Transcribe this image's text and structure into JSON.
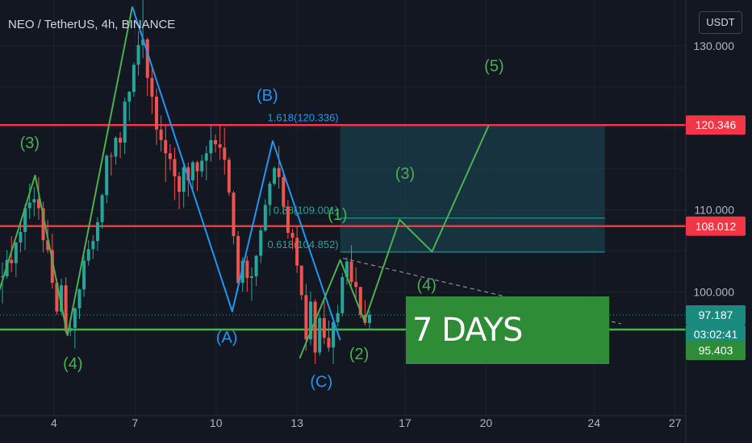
{
  "header": {
    "symbol": "NEO / TetherUS, 4h, BINANCE",
    "currency": "USDT"
  },
  "banner": {
    "text": "7 DAYS"
  },
  "colors": {
    "background": "#131722",
    "up": "#26a69a",
    "down": "#ef5350",
    "level_line": "#f23645",
    "support_line": "#4caf50",
    "green_wave": "#4caf50",
    "blue_wave": "#2196f3",
    "axis_text": "#b2b5be"
  },
  "chart_data": {
    "type": "candlestick",
    "x_axis": {
      "tick_labels": [
        "4",
        "7",
        "10",
        "13",
        "17",
        "20",
        "24",
        "27"
      ],
      "range_days": [
        2.0,
        27.4
      ]
    },
    "y_axis": {
      "tick_labels": [
        "100.000",
        "110.000",
        "130.000"
      ],
      "ticks": [
        100,
        110,
        130
      ],
      "range": [
        84.9,
        135.6
      ]
    },
    "price_labels": [
      {
        "value": "120.346",
        "color": "#f23645"
      },
      {
        "value": "108.012",
        "color": "#f23645"
      },
      {
        "value": "97.187",
        "color": "#1b8a7e"
      },
      {
        "value": "03:02:41",
        "color": "#1b8a7e"
      },
      {
        "value": "95.403",
        "color": "#2e8b36"
      }
    ],
    "horizontal_levels": [
      {
        "price": 120.346,
        "role": "resistance"
      },
      {
        "price": 108.012,
        "role": "resistance"
      },
      {
        "price": 95.403,
        "role": "support"
      }
    ],
    "current_price": 97.187,
    "fib_levels": [
      {
        "label": "1.618(120.336)",
        "price": 120.336
      },
      {
        "label": "0.88(109.001)",
        "price": 109.001
      },
      {
        "label": "0.618(104.852)",
        "price": 104.852
      }
    ],
    "target_box": {
      "x1": 14.6,
      "x2": 24.4,
      "p_top": 120.346,
      "p_bottom": 104.852
    },
    "candles_ohlc": [
      [
        101.8,
        103.6,
        98.6,
        101.9
      ],
      [
        101.9,
        105.1,
        101.6,
        103.9
      ],
      [
        103.9,
        106.8,
        102.4,
        103.5
      ],
      [
        103.5,
        106.1,
        101.8,
        106.0
      ],
      [
        106.0,
        108.5,
        104.8,
        107.3
      ],
      [
        107.3,
        110.7,
        105.1,
        110.2
      ],
      [
        110.2,
        113.2,
        108.9,
        110.9
      ],
      [
        110.9,
        112.8,
        109.2,
        111.3
      ],
      [
        111.3,
        114.0,
        108.8,
        110.2
      ],
      [
        110.2,
        111.0,
        104.8,
        106.3
      ],
      [
        106.3,
        108.8,
        104.7,
        105.1
      ],
      [
        105.1,
        107.1,
        100.4,
        101.1
      ],
      [
        101.1,
        101.6,
        97.2,
        97.6
      ],
      [
        97.6,
        101.6,
        97.2,
        100.8
      ],
      [
        100.8,
        101.8,
        94.9,
        95.2
      ],
      [
        95.2,
        96.9,
        94.6,
        95.6
      ],
      [
        95.6,
        98.1,
        93.1,
        98.0
      ],
      [
        98.0,
        100.4,
        96.7,
        100.3
      ],
      [
        100.3,
        104.4,
        99.4,
        103.8
      ],
      [
        103.8,
        106.3,
        103.2,
        105.2
      ],
      [
        105.2,
        106.9,
        104.0,
        106.2
      ],
      [
        106.2,
        109.1,
        105.0,
        108.5
      ],
      [
        108.5,
        112.0,
        107.7,
        111.8
      ],
      [
        111.8,
        116.8,
        110.8,
        116.6
      ],
      [
        116.6,
        117.0,
        114.2,
        116.5
      ],
      [
        116.5,
        119.0,
        115.5,
        118.8
      ],
      [
        118.8,
        119.5,
        116.3,
        118.2
      ],
      [
        118.2,
        123.7,
        116.8,
        123.2
      ],
      [
        123.2,
        124.5,
        120.8,
        124.4
      ],
      [
        124.4,
        128.0,
        123.8,
        127.7
      ],
      [
        127.7,
        131.8,
        126.4,
        130.1
      ],
      [
        130.1,
        136.0,
        128.5,
        130.8
      ],
      [
        130.8,
        131.0,
        123.9,
        126.1
      ],
      [
        126.1,
        127.3,
        121.7,
        123.8
      ],
      [
        123.8,
        124.8,
        117.9,
        119.8
      ],
      [
        119.8,
        121.5,
        117.1,
        118.5
      ],
      [
        118.5,
        120.4,
        113.4,
        116.9
      ],
      [
        116.9,
        118.0,
        114.8,
        116.2
      ],
      [
        116.2,
        117.6,
        111.2,
        114.1
      ],
      [
        114.1,
        114.6,
        110.1,
        112.2
      ],
      [
        112.2,
        115.6,
        110.3,
        115.2
      ],
      [
        115.2,
        115.8,
        111.6,
        113.6
      ],
      [
        113.6,
        116.0,
        112.5,
        115.8
      ],
      [
        115.8,
        116.0,
        112.3,
        114.7
      ],
      [
        114.7,
        116.7,
        114.0,
        116.0
      ],
      [
        116.0,
        117.8,
        113.6,
        116.9
      ],
      [
        116.9,
        120.4,
        115.9,
        118.5
      ],
      [
        118.5,
        119.2,
        117.0,
        118.0
      ],
      [
        118.0,
        120.4,
        116.1,
        117.6
      ],
      [
        117.6,
        120.0,
        114.3,
        116.1
      ],
      [
        116.1,
        116.4,
        111.7,
        112.1
      ],
      [
        112.1,
        112.3,
        105.8,
        106.8
      ],
      [
        106.8,
        107.4,
        100.2,
        101.1
      ],
      [
        101.1,
        104.2,
        100.0,
        103.8
      ],
      [
        103.8,
        104.4,
        100.0,
        101.7
      ],
      [
        101.7,
        103.0,
        98.9,
        101.9
      ],
      [
        101.9,
        104.5,
        100.7,
        104.4
      ],
      [
        104.4,
        108.0,
        103.5,
        107.5
      ],
      [
        107.5,
        111.3,
        107.3,
        110.6
      ],
      [
        110.6,
        113.5,
        109.3,
        113.2
      ],
      [
        113.2,
        115.3,
        112.9,
        115.1
      ],
      [
        115.1,
        117.8,
        112.6,
        114.0
      ],
      [
        114.0,
        114.8,
        109.4,
        110.4
      ],
      [
        110.4,
        111.2,
        106.5,
        107.2
      ],
      [
        107.2,
        107.7,
        105.2,
        106.6
      ],
      [
        106.6,
        108.0,
        102.3,
        103.2
      ],
      [
        103.2,
        103.2,
        99.0,
        99.6
      ],
      [
        99.6,
        101.0,
        92.8,
        94.2
      ],
      [
        94.2,
        100.0,
        93.5,
        98.8
      ],
      [
        98.8,
        99.1,
        91.2,
        92.6
      ],
      [
        92.6,
        97.2,
        92.2,
        96.8
      ],
      [
        96.8,
        98.9,
        93.6,
        94.4
      ],
      [
        94.4,
        96.5,
        92.7,
        93.2
      ],
      [
        93.2,
        96.9,
        91.2,
        96.3
      ],
      [
        96.3,
        98.4,
        95.8,
        97.4
      ],
      [
        97.4,
        102.3,
        97.0,
        101.8
      ],
      [
        101.8,
        104.2,
        100.9,
        103.7
      ],
      [
        103.7,
        105.7,
        100.8,
        101.2
      ],
      [
        101.2,
        103.0,
        99.0,
        100.6
      ],
      [
        100.6,
        100.6,
        96.8,
        97.2
      ],
      [
        97.2,
        99.0,
        95.9,
        96.2
      ],
      [
        96.2,
        97.7,
        95.4,
        97.2
      ]
    ],
    "wave_count_green": {
      "points": [
        [
          1.8,
          98.3
        ],
        [
          3.3,
          114.2
        ],
        [
          4.5,
          94.7
        ],
        [
          6.9,
          134.8
        ]
      ],
      "labels": [
        {
          "text": "(3)",
          "x": 3.1,
          "p": 117.5
        },
        {
          "text": "(4)",
          "x": 4.7,
          "p": 90.6
        }
      ]
    },
    "wave_count_blue": {
      "points": [
        [
          6.9,
          134.8
        ],
        [
          10.6,
          97.6
        ],
        [
          12.1,
          118.4
        ],
        [
          14.6,
          94.1
        ]
      ],
      "labels": [
        {
          "text": "(B)",
          "x": 11.9,
          "p": 123.3
        },
        {
          "text": "(A)",
          "x": 10.4,
          "p": 93.8
        },
        {
          "text": "(C)",
          "x": 13.9,
          "p": 88.4
        }
      ]
    },
    "wave_count_projection": {
      "points": [
        [
          13.1,
          91.9
        ],
        [
          14.6,
          103.9
        ],
        [
          15.5,
          96.4
        ],
        [
          16.8,
          108.8
        ],
        [
          18.0,
          104.9
        ],
        [
          20.1,
          120.3
        ]
      ],
      "labels": [
        {
          "text": "(1)",
          "x": 14.5,
          "p": 108.8
        },
        {
          "text": "(2)",
          "x": 15.3,
          "p": 91.8
        },
        {
          "text": "(3)",
          "x": 17.0,
          "p": 113.8
        },
        {
          "text": "(4)",
          "x": 17.8,
          "p": 100.2
        },
        {
          "text": "(5)",
          "x": 20.3,
          "p": 126.9
        }
      ]
    },
    "trendline_dashed": {
      "points": [
        [
          14.7,
          104.1
        ],
        [
          25.0,
          96.1
        ]
      ]
    }
  }
}
